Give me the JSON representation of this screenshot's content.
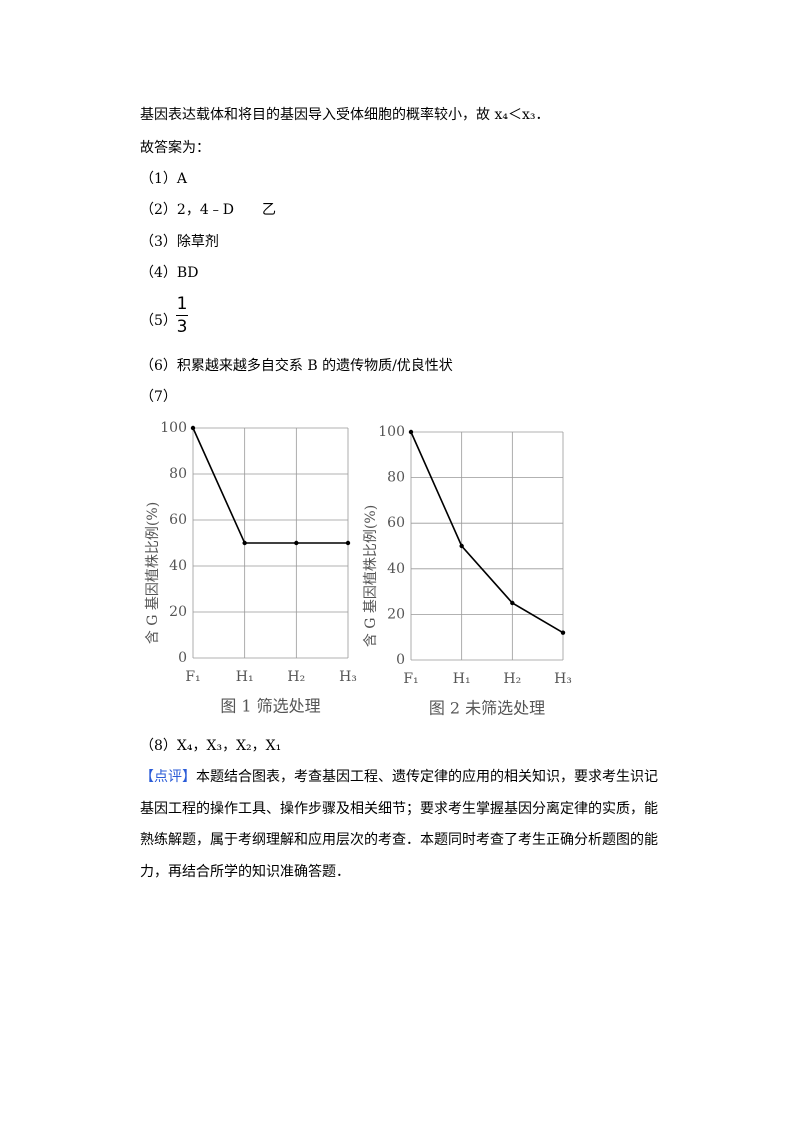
{
  "document": {
    "line1": [
      "基因表达载体和将目的基因导入受体细胞的概率较小，故 x₄＜x₃．"
    ],
    "answer_intro": "故答案为：",
    "answers": [
      "（1）A",
      "（2）2，4﹣D　　乙",
      "（3）除草剂",
      "（4）BD"
    ],
    "answer5": {
      "label": "（5）",
      "numerator": "1",
      "denominator": "3"
    },
    "answer6": "（6）积累越来越多自交系 B 的遗传物质/优良性状",
    "answer7": "（7）",
    "answer8": "（8）X₄，X₃，X₂，X₁",
    "comment": {
      "tag": "【点评】",
      "text": "本题结合图表，考查基因工程、遗传定律的应用的相关知识，要求考生识记基因工程的操作工具、操作步骤及相关细节；要求考生掌握基因分离定律的实质，能熟练解题，属于考纲理解和应用层次的考查．本题同时考查了考生正确分析题图的能力，再结合所学的知识准确答题．"
    }
  },
  "chart_data": [
    {
      "type": "line",
      "ylabel": "含 G 基因植株比例(%)",
      "caption": "图 1  筛选处理",
      "categories": [
        "F₁",
        "H₁",
        "H₂",
        "H₃"
      ],
      "values": [
        100,
        50,
        50,
        50
      ],
      "color": "#000000",
      "ylim": [
        0,
        100
      ],
      "yticks": [
        0,
        20,
        40,
        60,
        80,
        100
      ],
      "grid": true
    },
    {
      "type": "line",
      "ylabel": "含 G 基因植株比例(%)",
      "caption": "图 2  未筛选处理",
      "categories": [
        "F₁",
        "H₁",
        "H₂",
        "H₃"
      ],
      "values": [
        100,
        50,
        25,
        12
      ],
      "color": "#000000",
      "ylim": [
        0,
        100
      ],
      "yticks": [
        0,
        20,
        40,
        60,
        80,
        100
      ],
      "grid": true
    }
  ]
}
